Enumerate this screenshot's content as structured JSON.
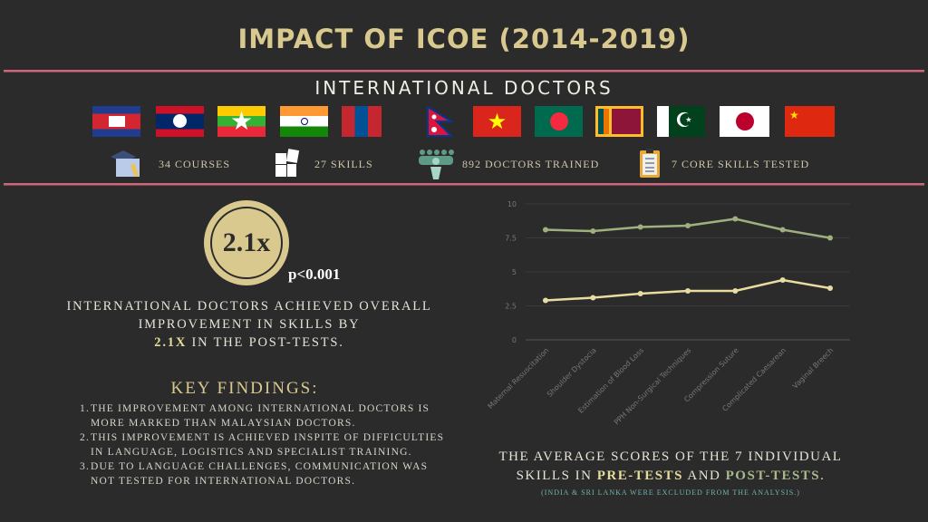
{
  "title": "IMPACT OF ICOE (2014-2019)",
  "subtitle": "INTERNATIONAL DOCTORS",
  "flags": [
    "cambodia-flag",
    "laos-flag",
    "myanmar-flag",
    "india-flag",
    "mongolia-flag",
    "nepal-flag",
    "vietnam-flag",
    "bangladesh-flag",
    "sri-lanka-flag",
    "pakistan-flag",
    "japan-flag",
    "china-flag"
  ],
  "stats": [
    {
      "icon": "graduation-book-icon",
      "label": "34 COURSES"
    },
    {
      "icon": "puzzle-icon",
      "label": "27 SKILLS"
    },
    {
      "icon": "people-group-icon",
      "label": "892 DOCTORS TRAINED"
    },
    {
      "icon": "clipboard-icon",
      "label": "7 CORE SKILLS TESTED"
    }
  ],
  "highlight": {
    "value": "2.1x",
    "p_value": "p<0.001",
    "desc_1": "INTERNATIONAL DOCTORS ACHIEVED OVERALL IMPROVEMENT IN SKILLS BY",
    "desc_hl": "2.1X",
    "desc_2": " IN THE POST-TESTS."
  },
  "key_findings": {
    "heading": "KEY FINDINGS:",
    "items": [
      {
        "n": "1.",
        "text": "THE IMPROVEMENT AMONG INTERNATIONAL DOCTORS IS MORE MARKED THAN MALAYSIAN DOCTORS."
      },
      {
        "n": "2.",
        "text": "THIS IMPROVEMENT IS ACHIEVED INSPITE OF DIFFICULTIES IN LANGUAGE, LOGISTICS AND SPECIALIST TRAINING."
      },
      {
        "n": "3.",
        "text": "DUE TO LANGUAGE CHALLENGES, COMMUNICATION WAS NOT TESTED FOR INTERNATIONAL DOCTORS."
      }
    ]
  },
  "caption": {
    "part1": "THE AVERAGE SCORES OF THE 7 INDIVIDUAL SKILLS IN ",
    "pre": "PRE-TESTS",
    "and": " AND ",
    "post": "POST-TESTS",
    "end": ".",
    "note": "(INDIA & SRI LANKA WERE EXCLUDED FROM THE ANALYSIS.)"
  },
  "colors": {
    "gold": "#d9c98f",
    "pre": "#e8dca0",
    "post": "#9fb07e",
    "rule": "#c9677b"
  },
  "chart_data": {
    "type": "line",
    "categories": [
      "Maternal Resuscitation",
      "Shoulder Dystocia",
      "Estimation of Blood Loss",
      "PPH Non-Surgical Techniques",
      "Compression Suture",
      "Complicated Caesarean",
      "Vaginal Breech"
    ],
    "yticks": [
      "0",
      "2.5",
      "5",
      "7.5",
      "10"
    ],
    "ylim": [
      0,
      10
    ],
    "grid": true,
    "series": [
      {
        "name": "POST-TESTS",
        "color": "#9fb07e",
        "values": [
          8.1,
          8.0,
          8.3,
          8.4,
          8.9,
          8.1,
          7.5
        ]
      },
      {
        "name": "PRE-TESTS",
        "color": "#e8dca0",
        "values": [
          2.9,
          3.1,
          3.4,
          3.6,
          3.6,
          4.4,
          3.8
        ]
      }
    ]
  }
}
